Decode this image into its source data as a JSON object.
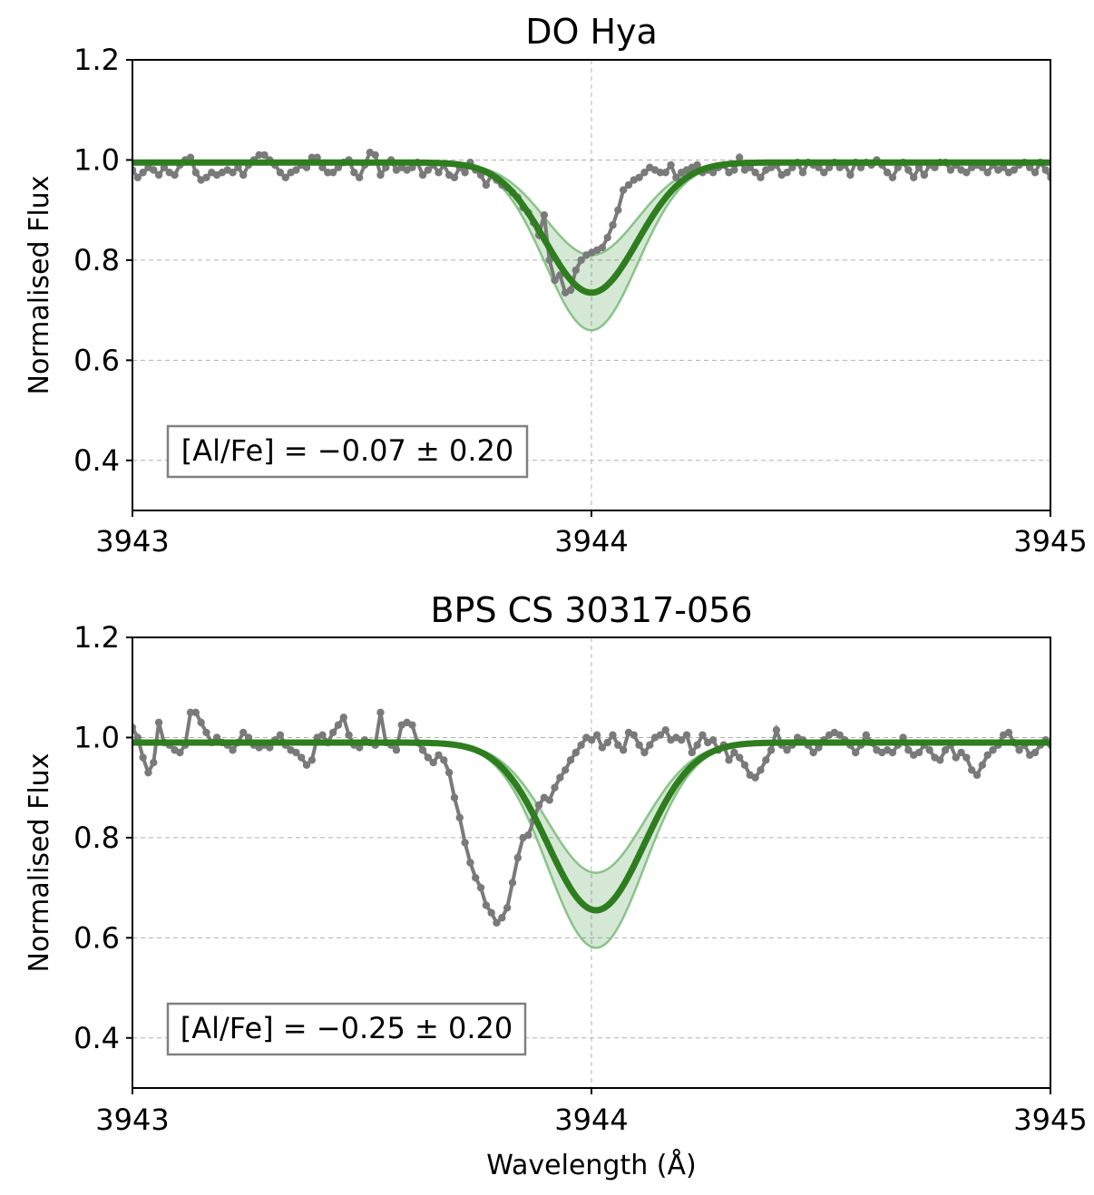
{
  "chart_data": [
    {
      "type": "line",
      "title": "DO Hya",
      "xlabel": "",
      "ylabel": "Normalised Flux",
      "xlim": [
        3943,
        3945
      ],
      "ylim": [
        0.3,
        1.2
      ],
      "xticks": [
        "3943",
        "3944",
        "3945"
      ],
      "yticks": [
        "0.4",
        "0.6",
        "0.8",
        "1.0",
        "1.2"
      ],
      "grid": true,
      "vline_x": 3944.0,
      "annotation": "[Al/Fe] = −0.07 ± 0.20",
      "model": {
        "continuum": 0.995,
        "center": 3944.0,
        "sigma": 0.1,
        "depth_best": 0.26,
        "depth_low": 0.185,
        "depth_high": 0.335
      },
      "observed": {
        "x0": 3943.0,
        "dx": 0.0115,
        "y": [
          0.98,
          0.965,
          0.975,
          0.985,
          0.98,
          0.97,
          0.985,
          0.975,
          0.97,
          0.99,
          1.0,
          1.005,
          0.975,
          0.96,
          0.965,
          0.975,
          0.97,
          0.975,
          0.98,
          0.975,
          0.985,
          0.97,
          0.99,
          1.0,
          1.01,
          1.01,
          1.0,
          0.99,
          0.975,
          0.965,
          0.975,
          0.98,
          0.99,
          0.985,
          1.005,
          1.005,
          0.985,
          0.975,
          0.975,
          0.985,
          0.995,
          1.0,
          0.975,
          0.965,
          0.99,
          1.015,
          1.01,
          0.97,
          0.985,
          1.0,
          0.98,
          0.985,
          0.98,
          0.985,
          0.995,
          0.97,
          0.98,
          0.99,
          0.975,
          0.99,
          0.97,
          0.965,
          0.985,
          0.975,
          0.995,
          0.98,
          0.97,
          0.95,
          0.97,
          0.96,
          0.95,
          0.945,
          0.935,
          0.925,
          0.905,
          0.895,
          0.875,
          0.85,
          0.89,
          0.8,
          0.76,
          0.77,
          0.735,
          0.74,
          0.78,
          0.8,
          0.81,
          0.815,
          0.82,
          0.825,
          0.845,
          0.87,
          0.9,
          0.94,
          0.95,
          0.96,
          0.965,
          0.975,
          0.985,
          0.98,
          0.975,
          0.975,
          0.99,
          0.965,
          0.975,
          0.98,
          0.985,
          0.99,
          0.975,
          0.98,
          0.975,
          0.985,
          0.99,
          0.975,
          0.98,
          1.005,
          0.98,
          0.985,
          0.975,
          0.965,
          0.98,
          0.985,
          0.99,
          0.97,
          0.975,
          0.985,
          0.995,
          0.975,
          0.995,
          0.99,
          0.985,
          0.975,
          0.985,
          0.995,
          0.985,
          0.99,
          0.97,
          0.995,
          0.985,
          0.995,
          0.99,
          1.0,
          0.99,
          0.975,
          0.965,
          0.985,
          0.995,
          0.98,
          0.965,
          0.985,
          0.97,
          0.99,
          0.985,
          0.995,
          0.995,
          0.98,
          0.99,
          0.98,
          0.975,
          0.985,
          0.99,
          0.985,
          0.975,
          0.99,
          0.98,
          0.985,
          0.975,
          0.98,
          0.99,
          0.995,
          0.985,
          0.975,
          0.995,
          0.98,
          0.965,
          0.98,
          1.0,
          0.99,
          0.995,
          0.975
        ]
      }
    },
    {
      "type": "line",
      "title": "BPS CS 30317-056",
      "xlabel": "Wavelength (Å)",
      "ylabel": "Normalised Flux",
      "xlim": [
        3943,
        3945
      ],
      "ylim": [
        0.3,
        1.2
      ],
      "xticks": [
        "3943",
        "3944",
        "3945"
      ],
      "yticks": [
        "0.4",
        "0.6",
        "0.8",
        "1.0",
        "1.2"
      ],
      "grid": true,
      "vline_x": 3944.0,
      "annotation": "[Al/Fe] = −0.25 ± 0.20",
      "model": {
        "continuum": 0.99,
        "center": 3944.01,
        "sigma": 0.105,
        "depth_best": 0.335,
        "depth_low": 0.26,
        "depth_high": 0.41
      },
      "observed": {
        "x0": 3943.0,
        "dx": 0.0115,
        "y": [
          1.02,
          1.0,
          0.96,
          0.93,
          0.95,
          1.03,
          0.99,
          0.985,
          0.975,
          0.97,
          0.985,
          1.05,
          1.05,
          1.03,
          1.01,
          0.99,
          1.0,
          0.99,
          0.985,
          0.975,
          0.99,
          1.01,
          1.0,
          0.985,
          0.98,
          0.985,
          0.98,
          0.995,
          1.005,
          0.985,
          0.975,
          0.97,
          0.96,
          0.945,
          0.955,
          1.0,
          1.005,
          0.99,
          1.01,
          1.025,
          1.04,
          1.005,
          0.985,
          0.98,
          0.995,
          0.99,
          0.985,
          1.05,
          0.99,
          0.985,
          0.975,
          1.025,
          1.03,
          1.025,
          0.99,
          0.975,
          0.96,
          0.95,
          0.965,
          0.955,
          0.93,
          0.88,
          0.84,
          0.79,
          0.75,
          0.72,
          0.7,
          0.665,
          0.65,
          0.63,
          0.64,
          0.66,
          0.71,
          0.76,
          0.8,
          0.805,
          0.835,
          0.865,
          0.88,
          0.875,
          0.9,
          0.92,
          0.935,
          0.955,
          0.97,
          0.985,
          1.0,
          0.995,
          1.005,
          0.98,
          0.99,
          1.005,
          0.985,
          0.975,
          1.01,
          1.005,
          0.985,
          0.97,
          0.985,
          1.0,
          1.005,
          1.015,
          0.995,
          1.0,
          0.995,
          1.005,
          0.97,
          0.985,
          1.005,
          0.99,
          0.995,
          0.975,
          0.985,
          0.955,
          0.97,
          0.96,
          0.945,
          0.925,
          0.92,
          0.935,
          0.955,
          0.975,
          1.015,
          0.985,
          0.975,
          0.985,
          1.0,
          0.995,
          0.985,
          0.97,
          0.98,
          0.995,
          1.005,
          1.01,
          1.005,
          0.995,
          0.985,
          0.97,
          0.985,
          1.005,
          0.99,
          0.975,
          0.97,
          0.975,
          0.97,
          0.985,
          1.0,
          0.975,
          0.965,
          0.97,
          0.985,
          0.975,
          0.96,
          0.955,
          0.975,
          0.985,
          0.96,
          0.97,
          0.96,
          0.935,
          0.925,
          0.945,
          0.965,
          0.975,
          0.985,
          1.005,
          1.01,
          0.99,
          0.975,
          0.985,
          0.965,
          0.97,
          0.985,
          0.995,
          0.985,
          0.975,
          0.97,
          0.965,
          0.96,
          0.97,
          0.98,
          0.97
        ]
      }
    }
  ]
}
